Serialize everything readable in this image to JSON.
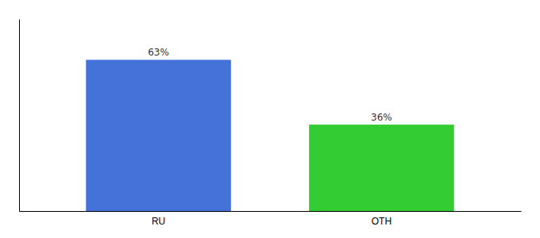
{
  "chart_data": {
    "type": "bar",
    "categories": [
      "RU",
      "OTH"
    ],
    "values": [
      63,
      36
    ],
    "value_labels": [
      "63%",
      "36%"
    ],
    "colors": [
      "#4472d8",
      "#33cc33"
    ],
    "ylim": [
      0,
      80
    ],
    "data_labels": true,
    "tick_labels": "x"
  }
}
